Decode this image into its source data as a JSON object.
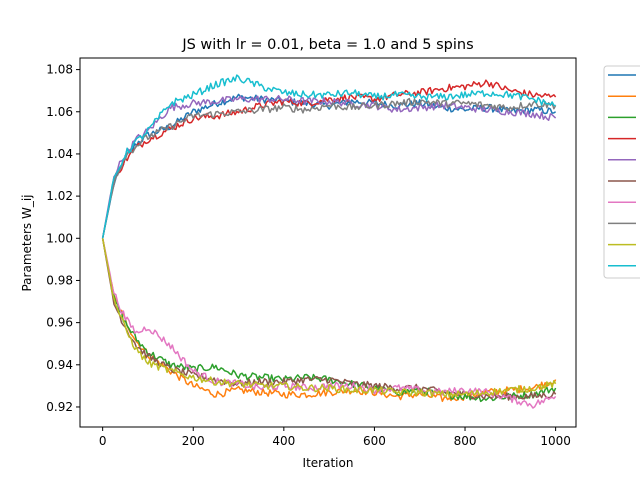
{
  "chart_data": {
    "type": "line",
    "title": "JS with lr = 0.01, beta = 1.0 and 5 spins",
    "xlabel": "Iteration",
    "ylabel": "Parameters W_ij",
    "xlim": [
      -50,
      1045
    ],
    "ylim": [
      0.9105,
      1.0855
    ],
    "xticks": [
      0,
      200,
      400,
      600,
      800,
      1000
    ],
    "xtick_labels": [
      "0",
      "200",
      "400",
      "600",
      "800",
      "1000"
    ],
    "yticks": [
      0.92,
      0.94,
      0.96,
      0.98,
      1.0,
      1.02,
      1.04,
      1.06,
      1.08
    ],
    "ytick_labels": [
      "0.92",
      "0.94",
      "0.96",
      "0.98",
      "1.00",
      "1.02",
      "1.04",
      "1.06",
      "1.08"
    ],
    "grid": false,
    "legend": {
      "placement": "outside-right",
      "labels_visible": false
    },
    "x": [
      0,
      25,
      50,
      75,
      100,
      150,
      200,
      250,
      300,
      350,
      400,
      450,
      500,
      550,
      600,
      650,
      700,
      750,
      800,
      850,
      900,
      950,
      1000
    ],
    "series": [
      {
        "color": "#1f77b4",
        "values": [
          1.0,
          1.026,
          1.038,
          1.045,
          1.049,
          1.053,
          1.06,
          1.064,
          1.067,
          1.066,
          1.065,
          1.064,
          1.063,
          1.065,
          1.064,
          1.063,
          1.064,
          1.062,
          1.061,
          1.062,
          1.06,
          1.061,
          1.06
        ]
      },
      {
        "color": "#ff7f0e",
        "values": [
          1.0,
          0.972,
          0.961,
          0.951,
          0.945,
          0.937,
          0.93,
          0.926,
          0.928,
          0.927,
          0.926,
          0.926,
          0.927,
          0.928,
          0.927,
          0.925,
          0.926,
          0.924,
          0.925,
          0.927,
          0.928,
          0.929,
          0.933
        ]
      },
      {
        "color": "#2ca02c",
        "values": [
          1.0,
          0.971,
          0.96,
          0.952,
          0.946,
          0.94,
          0.938,
          0.939,
          0.935,
          0.934,
          0.933,
          0.934,
          0.933,
          0.931,
          0.929,
          0.927,
          0.928,
          0.926,
          0.925,
          0.924,
          0.925,
          0.926,
          0.929
        ]
      },
      {
        "color": "#d62728",
        "values": [
          1.0,
          1.028,
          1.037,
          1.043,
          1.047,
          1.052,
          1.057,
          1.058,
          1.06,
          1.063,
          1.065,
          1.064,
          1.066,
          1.067,
          1.066,
          1.068,
          1.069,
          1.071,
          1.072,
          1.074,
          1.07,
          1.068,
          1.067
        ]
      },
      {
        "color": "#9467bd",
        "values": [
          1.0,
          1.03,
          1.04,
          1.047,
          1.051,
          1.062,
          1.064,
          1.065,
          1.066,
          1.066,
          1.066,
          1.065,
          1.065,
          1.064,
          1.063,
          1.061,
          1.062,
          1.063,
          1.062,
          1.061,
          1.06,
          1.059,
          1.057
        ]
      },
      {
        "color": "#8c564b",
        "values": [
          1.0,
          0.969,
          0.958,
          0.949,
          0.944,
          0.938,
          0.935,
          0.933,
          0.931,
          0.932,
          0.932,
          0.933,
          0.933,
          0.931,
          0.93,
          0.929,
          0.929,
          0.927,
          0.926,
          0.925,
          0.925,
          0.925,
          0.926
        ]
      },
      {
        "color": "#e377c2",
        "values": [
          1.0,
          0.974,
          0.962,
          0.955,
          0.958,
          0.949,
          0.937,
          0.932,
          0.931,
          0.929,
          0.93,
          0.929,
          0.93,
          0.93,
          0.928,
          0.929,
          0.928,
          0.927,
          0.928,
          0.927,
          0.924,
          0.921,
          0.925
        ]
      },
      {
        "color": "#7f7f7f",
        "values": [
          1.0,
          1.027,
          1.039,
          1.044,
          1.048,
          1.053,
          1.058,
          1.059,
          1.06,
          1.061,
          1.062,
          1.061,
          1.063,
          1.062,
          1.063,
          1.064,
          1.065,
          1.064,
          1.064,
          1.063,
          1.062,
          1.064,
          1.063
        ]
      },
      {
        "color": "#bcbd22",
        "values": [
          1.0,
          0.971,
          0.957,
          0.947,
          0.941,
          0.937,
          0.934,
          0.932,
          0.931,
          0.93,
          0.93,
          0.929,
          0.929,
          0.928,
          0.928,
          0.927,
          0.927,
          0.926,
          0.926,
          0.927,
          0.928,
          0.929,
          0.931
        ]
      },
      {
        "color": "#17becf",
        "values": [
          1.0,
          1.028,
          1.04,
          1.046,
          1.051,
          1.064,
          1.068,
          1.073,
          1.076,
          1.072,
          1.069,
          1.068,
          1.068,
          1.069,
          1.067,
          1.068,
          1.067,
          1.067,
          1.068,
          1.069,
          1.068,
          1.066,
          1.063
        ]
      }
    ]
  }
}
